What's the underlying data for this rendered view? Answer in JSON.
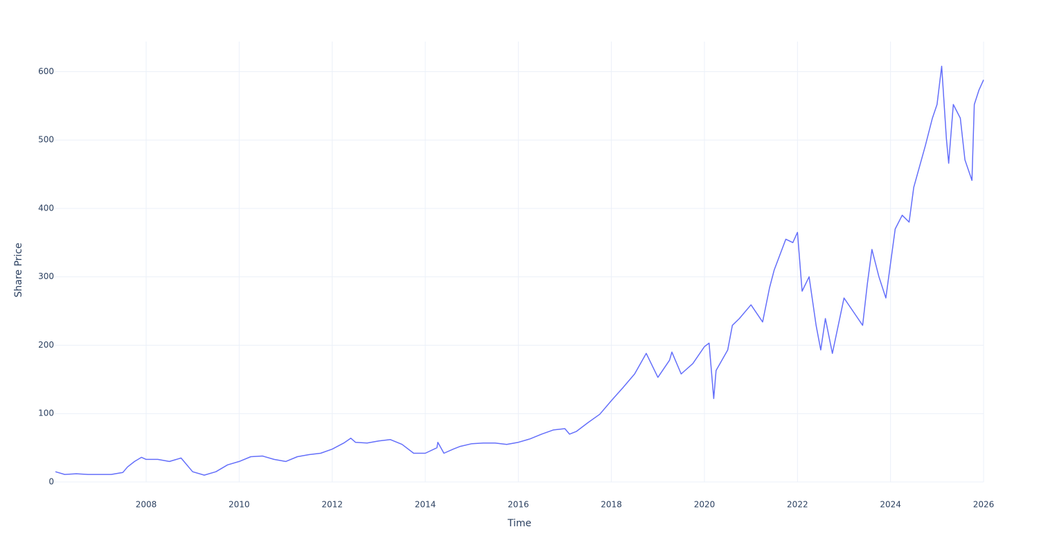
{
  "chart_data": {
    "type": "line",
    "x_label": "Time",
    "y_label": "Share Price",
    "x": [
      2006.05,
      2006.25,
      2006.5,
      2006.75,
      2007.0,
      2007.25,
      2007.5,
      2007.6,
      2007.75,
      2007.9,
      2008.0,
      2008.25,
      2008.5,
      2008.75,
      2009.0,
      2009.25,
      2009.5,
      2009.75,
      2010.0,
      2010.25,
      2010.5,
      2010.75,
      2011.0,
      2011.25,
      2011.5,
      2011.75,
      2012.0,
      2012.25,
      2012.4,
      2012.5,
      2012.75,
      2013.0,
      2013.25,
      2013.5,
      2013.75,
      2014.0,
      2014.25,
      2014.27,
      2014.4,
      2014.6,
      2014.75,
      2015.0,
      2015.25,
      2015.5,
      2015.75,
      2016.0,
      2016.25,
      2016.5,
      2016.75,
      2017.0,
      2017.1,
      2017.25,
      2017.5,
      2017.75,
      2018.0,
      2018.25,
      2018.5,
      2018.75,
      2019.0,
      2019.25,
      2019.3,
      2019.5,
      2019.75,
      2020.0,
      2020.1,
      2020.2,
      2020.25,
      2020.5,
      2020.6,
      2020.75,
      2021.0,
      2021.25,
      2021.4,
      2021.5,
      2021.75,
      2021.9,
      2022.0,
      2022.1,
      2022.25,
      2022.4,
      2022.5,
      2022.6,
      2022.75,
      2023.0,
      2023.25,
      2023.4,
      2023.5,
      2023.6,
      2023.75,
      2023.9,
      2024.0,
      2024.1,
      2024.25,
      2024.4,
      2024.5,
      2024.75,
      2024.9,
      2025.0,
      2025.1,
      2025.2,
      2025.25,
      2025.35,
      2025.5,
      2025.6,
      2025.75,
      2025.8,
      2025.9,
      2026.0
    ],
    "values": [
      15,
      11,
      12,
      11,
      11,
      11,
      14,
      22,
      30,
      36,
      33,
      33,
      30,
      35,
      15,
      10,
      15,
      25,
      30,
      37,
      38,
      33,
      30,
      37,
      40,
      42,
      48,
      57,
      64,
      58,
      57,
      60,
      62,
      55,
      42,
      42,
      50,
      58,
      42,
      48,
      52,
      56,
      57,
      57,
      55,
      58,
      63,
      70,
      76,
      78,
      70,
      74,
      87,
      99,
      119,
      138,
      158,
      188,
      153,
      178,
      190,
      158,
      173,
      198,
      203,
      122,
      163,
      193,
      229,
      239,
      259,
      234,
      284,
      310,
      355,
      350,
      365,
      279,
      300,
      229,
      193,
      239,
      188,
      269,
      244,
      229,
      289,
      340,
      300,
      269,
      320,
      370,
      390,
      380,
      431,
      492,
      532,
      552,
      608,
      502,
      466,
      552,
      532,
      471,
      441,
      552,
      573,
      588
    ],
    "color": "#636efa",
    "xlim": [
      2006.05,
      2026
    ],
    "xticks": [
      2008,
      2010,
      2012,
      2014,
      2016,
      2018,
      2020,
      2022,
      2024,
      2026
    ],
    "ylim": [
      0,
      644
    ],
    "yticks": [
      0,
      100,
      200,
      300,
      400,
      500,
      600
    ],
    "grid": true
  }
}
